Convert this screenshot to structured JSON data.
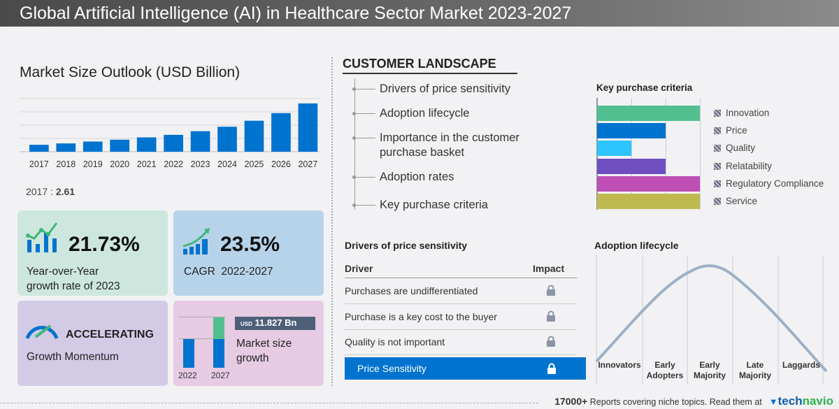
{
  "title": "Global Artificial Intelligence (AI) in Healthcare Sector Market 2023-2027",
  "market": {
    "heading": "Market Size Outlook (USD Billion)",
    "base_year": "2017",
    "base_sep": ":",
    "base_value": "2.61"
  },
  "chart_data": {
    "type": "bar",
    "title": "Market Size Outlook (USD Billion)",
    "categories": [
      "2017",
      "2018",
      "2019",
      "2020",
      "2021",
      "2022",
      "2023",
      "2024",
      "2025",
      "2026",
      "2027"
    ],
    "values": [
      2.61,
      3.13,
      3.83,
      4.52,
      5.39,
      6.35,
      7.73,
      9.4,
      11.66,
      14.53,
      18.18
    ],
    "ylim": [
      0,
      20
    ],
    "grid": true,
    "color": "#0073cf"
  },
  "cards": {
    "yoy": {
      "value": "21.73%",
      "label1": "Year-over-Year",
      "label2": "growth rate of 2023",
      "color": "#cde7df"
    },
    "cagr": {
      "value": "23.5%",
      "label": "CAGR  2022-2027",
      "color": "#b7d3ea"
    },
    "momentum": {
      "value": "ACCELERATING",
      "label": "Growth Momentum",
      "color": "#d3cbe6"
    },
    "growth": {
      "currency": "USD",
      "value": "11.827 Bn",
      "label1": "Market size",
      "label2": "growth",
      "year_a": "2022",
      "year_b": "2027",
      "color": "#e6cbe3"
    }
  },
  "landscape": {
    "heading": "CUSTOMER LANDSCAPE",
    "items": [
      "Drivers of price sensitivity",
      "Adoption lifecycle",
      "Importance in the customer purchase basket",
      "Adoption rates",
      "Key purchase criteria"
    ]
  },
  "kpc": {
    "title": "Key purchase criteria",
    "items": [
      {
        "label": "Innovation",
        "level": 1.0,
        "color": "#52bf90"
      },
      {
        "label": "Price",
        "level": 0.667,
        "color": "#0073cf"
      },
      {
        "label": "Quality",
        "level": 0.333,
        "color": "#2ec4ff"
      },
      {
        "label": "Relatability",
        "level": 0.667,
        "color": "#6f4fbf"
      },
      {
        "label": "Regulatory Compliance",
        "level": 1.0,
        "color": "#bf4fb4"
      },
      {
        "label": "Service",
        "level": 1.0,
        "color": "#bfba50"
      }
    ]
  },
  "drivers": {
    "title": "Drivers of price sensitivity",
    "col_driver": "Driver",
    "col_impact": "Impact",
    "rows": [
      "Purchases are undifferentiated",
      "Purchase is a key cost to the buyer",
      "Quality is not important"
    ],
    "summary": "Price Sensitivity",
    "highlight_color": "#0073cf"
  },
  "adoption": {
    "title": "Adoption lifecycle",
    "phases": [
      [
        "",
        "Innovators"
      ],
      [
        "Early",
        "Adopters"
      ],
      [
        "Early",
        "Majority"
      ],
      [
        "Late",
        "Majority"
      ],
      [
        "",
        "Laggards"
      ]
    ]
  },
  "footer": {
    "count": "17000+",
    "text": "Reports covering niche topics. Read them at",
    "brand_a": "tech",
    "brand_b": "navio"
  }
}
